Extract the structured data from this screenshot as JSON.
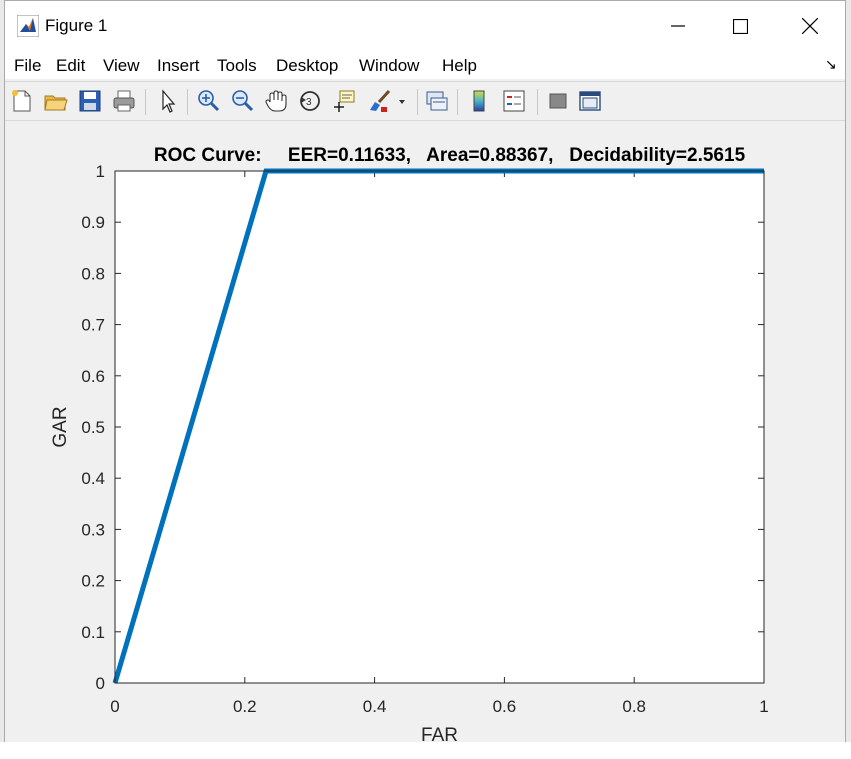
{
  "window": {
    "title": "Figure 1",
    "controls": {
      "minimize": "minimize",
      "maximize": "maximize",
      "close": "close"
    }
  },
  "menu": {
    "items": [
      "File",
      "Edit",
      "View",
      "Insert",
      "Tools",
      "Desktop",
      "Window",
      "Help"
    ]
  },
  "toolbar": {
    "buttons": [
      "new-figure-icon",
      "open-file-icon",
      "save-icon",
      "print-icon",
      "pointer-icon",
      "zoom-in-icon",
      "zoom-out-icon",
      "pan-hand-icon",
      "rotate-3d-icon",
      "data-cursor-icon",
      "brush-icon",
      "link-plot-icon",
      "colorbar-icon",
      "legend-icon",
      "hide-plot-tools-icon",
      "show-plot-tools-icon"
    ]
  },
  "colors": {
    "line": "#0072bd",
    "background": "#f0f0f0",
    "axes_background": "#ffffff"
  },
  "chart_data": {
    "type": "line",
    "title": "ROC Curve:     EER=0.11633,   Area=0.88367,   Decidability=2.5615",
    "xlabel": "FAR",
    "ylabel": "GAR",
    "xlim": [
      0,
      1
    ],
    "ylim": [
      0,
      1
    ],
    "xticks": [
      0,
      0.2,
      0.4,
      0.6,
      0.8,
      1
    ],
    "xtick_labels": [
      "0",
      "0.2",
      "0.4",
      "0.6",
      "0.8",
      "1"
    ],
    "yticks": [
      0,
      0.1,
      0.2,
      0.3,
      0.4,
      0.5,
      0.6,
      0.7,
      0.8,
      0.9,
      1
    ],
    "ytick_labels": [
      "0",
      "0.1",
      "0.2",
      "0.3",
      "0.4",
      "0.5",
      "0.6",
      "0.7",
      "0.8",
      "0.9",
      "1"
    ],
    "grid": false,
    "series": [
      {
        "x": [
          0,
          0.2327,
          1
        ],
        "y": [
          0,
          1,
          1
        ]
      }
    ]
  }
}
